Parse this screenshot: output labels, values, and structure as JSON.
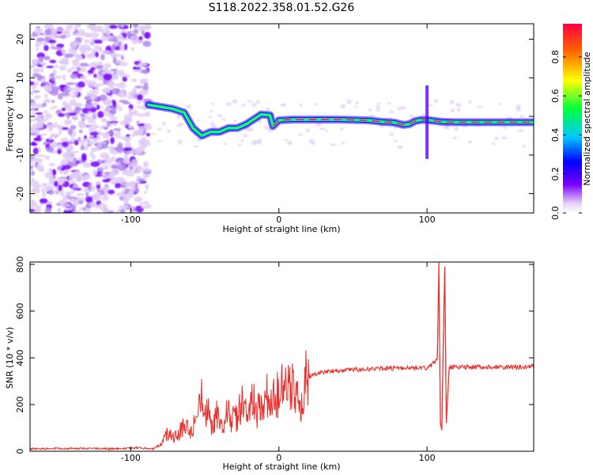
{
  "title": "S118.2022.358.01.52.G26",
  "chart_data": [
    {
      "type": "heatmap",
      "xlabel": "Height of straight line (km)",
      "ylabel": "Frequency (Hz)",
      "xlim": [
        -168,
        172
      ],
      "ylim": [
        -25,
        24
      ],
      "xticks": [
        -100,
        0,
        100
      ],
      "xtick_labels": [
        "-100",
        "0",
        "100"
      ],
      "yticks": [
        -20,
        -10,
        0,
        10,
        20
      ],
      "ytick_labels": [
        "-20",
        "-10",
        "0",
        "10",
        "20"
      ],
      "colorbar": {
        "label": "Normalized spectral amplitude",
        "range": [
          0,
          0.97
        ],
        "ticks": [
          0.0,
          0.2,
          0.4,
          0.6,
          0.8
        ],
        "tick_labels": [
          "0.0",
          "0.2",
          "0.4",
          "0.6",
          "0.8"
        ],
        "colormap": [
          "#ffffff",
          "#e6d2f7",
          "#7a00ff",
          "#0000ff",
          "#00c8ff",
          "#00ff3c",
          "#ffff00",
          "#ff6a00",
          "#ff0040"
        ]
      },
      "ridge": {
        "x": [
          -88,
          -80,
          -72,
          -64,
          -58,
          -52,
          -46,
          -40,
          -34,
          -28,
          -22,
          -18,
          -12,
          -6,
          -4,
          0,
          10,
          20,
          30,
          40,
          50,
          60,
          70,
          78,
          84,
          88,
          92,
          96,
          100,
          110,
          120,
          140,
          160,
          172
        ],
        "y": [
          3,
          2.5,
          2,
          1,
          -3,
          -5,
          -4,
          -4,
          -3,
          -3,
          -2,
          -1,
          0.5,
          0.3,
          -2.5,
          -1,
          -0.8,
          -0.8,
          -0.8,
          -0.8,
          -0.9,
          -1,
          -1.4,
          -1.6,
          -2.2,
          -2,
          -1.2,
          -0.9,
          -0.9,
          -1.4,
          -1.5,
          -1.5,
          -1.5,
          -1.5
        ]
      }
    },
    {
      "type": "line",
      "xlabel": "Height of straight line (km)",
      "ylabel": "SNR (10 * v/v)",
      "xlim": [
        -168,
        172
      ],
      "ylim": [
        0,
        810
      ],
      "xticks": [
        -100,
        0,
        100
      ],
      "xtick_labels": [
        "-100",
        "0",
        "100"
      ],
      "yticks": [
        0,
        200,
        400,
        600,
        800
      ],
      "ytick_labels": [
        "0",
        "200",
        "400",
        "600",
        "800"
      ],
      "color": "#e8302c",
      "series": [
        {
          "x": [
            -168,
            -150,
            -130,
            -110,
            -95,
            -85,
            -80,
            -75,
            -70,
            -65,
            -60,
            -55,
            -52,
            -50,
            -48,
            -45,
            -42,
            -40,
            -35,
            -30,
            -25,
            -20,
            -18,
            -15,
            -12,
            -10,
            -8,
            -5,
            -2,
            0,
            3,
            5,
            8,
            10,
            12,
            13,
            15,
            18,
            20,
            25,
            30,
            40,
            50,
            60,
            70,
            80,
            90,
            95,
            100,
            105,
            107,
            108,
            109,
            110,
            111,
            112,
            113,
            115,
            120,
            140,
            160,
            172
          ],
          "y": [
            10,
            12,
            12,
            10,
            15,
            10,
            30,
            80,
            60,
            100,
            90,
            150,
            230,
            130,
            180,
            90,
            150,
            110,
            160,
            130,
            200,
            160,
            240,
            170,
            210,
            200,
            230,
            210,
            250,
            240,
            270,
            250,
            280,
            260,
            300,
            340,
            200,
            300,
            320,
            330,
            340,
            345,
            350,
            350,
            355,
            355,
            355,
            360,
            355,
            380,
            400,
            810,
            120,
            90,
            480,
            790,
            120,
            360,
            360,
            360,
            360,
            365
          ]
        }
      ]
    }
  ]
}
